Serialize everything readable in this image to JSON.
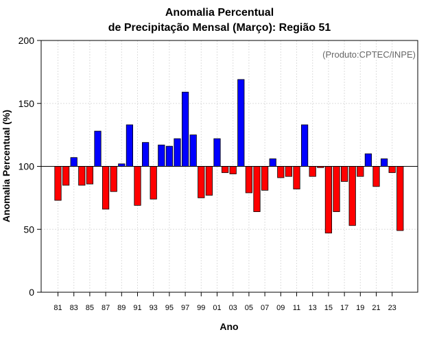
{
  "chart_data": {
    "type": "bar",
    "title_line1": "Anomalia Percentual",
    "title_line2": "de Precipitação Mensal (Março): Região 51",
    "xlabel": "Ano",
    "ylabel": "Anomalia Percentual (%)",
    "credit": "(Produto:CPTEC/INPE)",
    "ylim": [
      0,
      200
    ],
    "yticks": [
      0,
      50,
      100,
      150,
      200
    ],
    "baseline": 100,
    "grid": true,
    "color_above": "#0000ff",
    "color_below": "#ff0000",
    "years": [
      1981,
      1982,
      1983,
      1984,
      1985,
      1986,
      1987,
      1988,
      1989,
      1990,
      1991,
      1992,
      1993,
      1994,
      1995,
      1996,
      1997,
      1998,
      1999,
      2000,
      2001,
      2002,
      2003,
      2004,
      2005,
      2006,
      2007,
      2008,
      2009,
      2010,
      2011,
      2012,
      2013,
      2014,
      2015,
      2016,
      2017,
      2018,
      2019,
      2020,
      2021,
      2022,
      2023,
      2024
    ],
    "tick_labels": [
      "81",
      "83",
      "85",
      "87",
      "89",
      "91",
      "93",
      "95",
      "97",
      "99",
      "01",
      "03",
      "05",
      "07",
      "09",
      "11",
      "13",
      "15",
      "17",
      "19",
      "21",
      "23"
    ],
    "values": [
      73,
      85,
      107,
      85,
      86,
      128,
      66,
      80,
      102,
      133,
      69,
      119,
      74,
      117,
      116,
      122,
      159,
      125,
      75,
      77,
      122,
      95,
      94,
      169,
      79,
      64,
      81,
      106,
      91,
      92,
      82,
      133,
      92,
      99,
      47,
      64,
      88,
      53,
      92,
      110,
      84,
      106,
      95,
      49
    ]
  }
}
